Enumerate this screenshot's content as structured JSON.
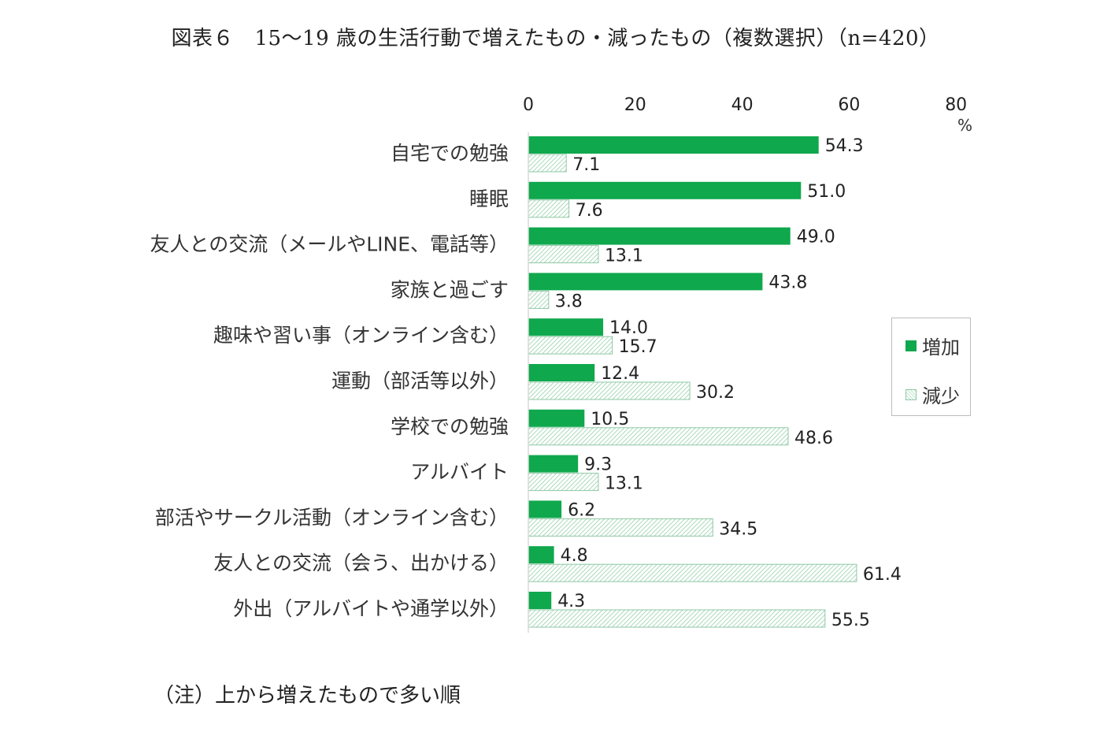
{
  "title": "図表６　15～19 歳の生活行動で増えたもの・減ったもの（複数選択）（n=420）",
  "note": "（注）上から増えたもので多い順",
  "colors": {
    "increase": "#0fa84d",
    "decrease_hatch": "#bfe5cd",
    "decrease_edge": "#8fc7a6"
  },
  "chart_data": {
    "type": "bar",
    "orientation": "horizontal",
    "unit_label": "%",
    "xlim": [
      0,
      80
    ],
    "ticks": [
      "0",
      "20",
      "40",
      "60",
      "80"
    ],
    "legend_position": "right",
    "categories": [
      "自宅での勉強",
      "睡眠",
      "友人との交流（メールやLINE、電話等）",
      "家族と過ごす",
      "趣味や習い事（オンライン含む）",
      "運動（部活等以外）",
      "学校での勉強",
      "アルバイト",
      "部活やサークル活動（オンライン含む）",
      "友人との交流（会う、出かける）",
      "外出（アルバイトや通学以外）"
    ],
    "series": [
      {
        "name": "増加",
        "values": [
          54.3,
          51.0,
          49.0,
          43.8,
          14.0,
          12.4,
          10.5,
          9.3,
          6.2,
          4.8,
          4.3
        ],
        "labels": [
          "54.3",
          "51.0",
          "49.0",
          "43.8",
          "14.0",
          "12.4",
          "10.5",
          "9.3",
          "6.2",
          "4.8",
          "4.3"
        ]
      },
      {
        "name": "減少",
        "values": [
          7.1,
          7.6,
          13.1,
          3.8,
          15.7,
          30.2,
          48.6,
          13.1,
          34.5,
          61.4,
          55.5
        ],
        "labels": [
          "7.1",
          "7.6",
          "13.1",
          "3.8",
          "15.7",
          "30.2",
          "48.6",
          "13.1",
          "34.5",
          "61.4",
          "55.5"
        ]
      }
    ]
  }
}
